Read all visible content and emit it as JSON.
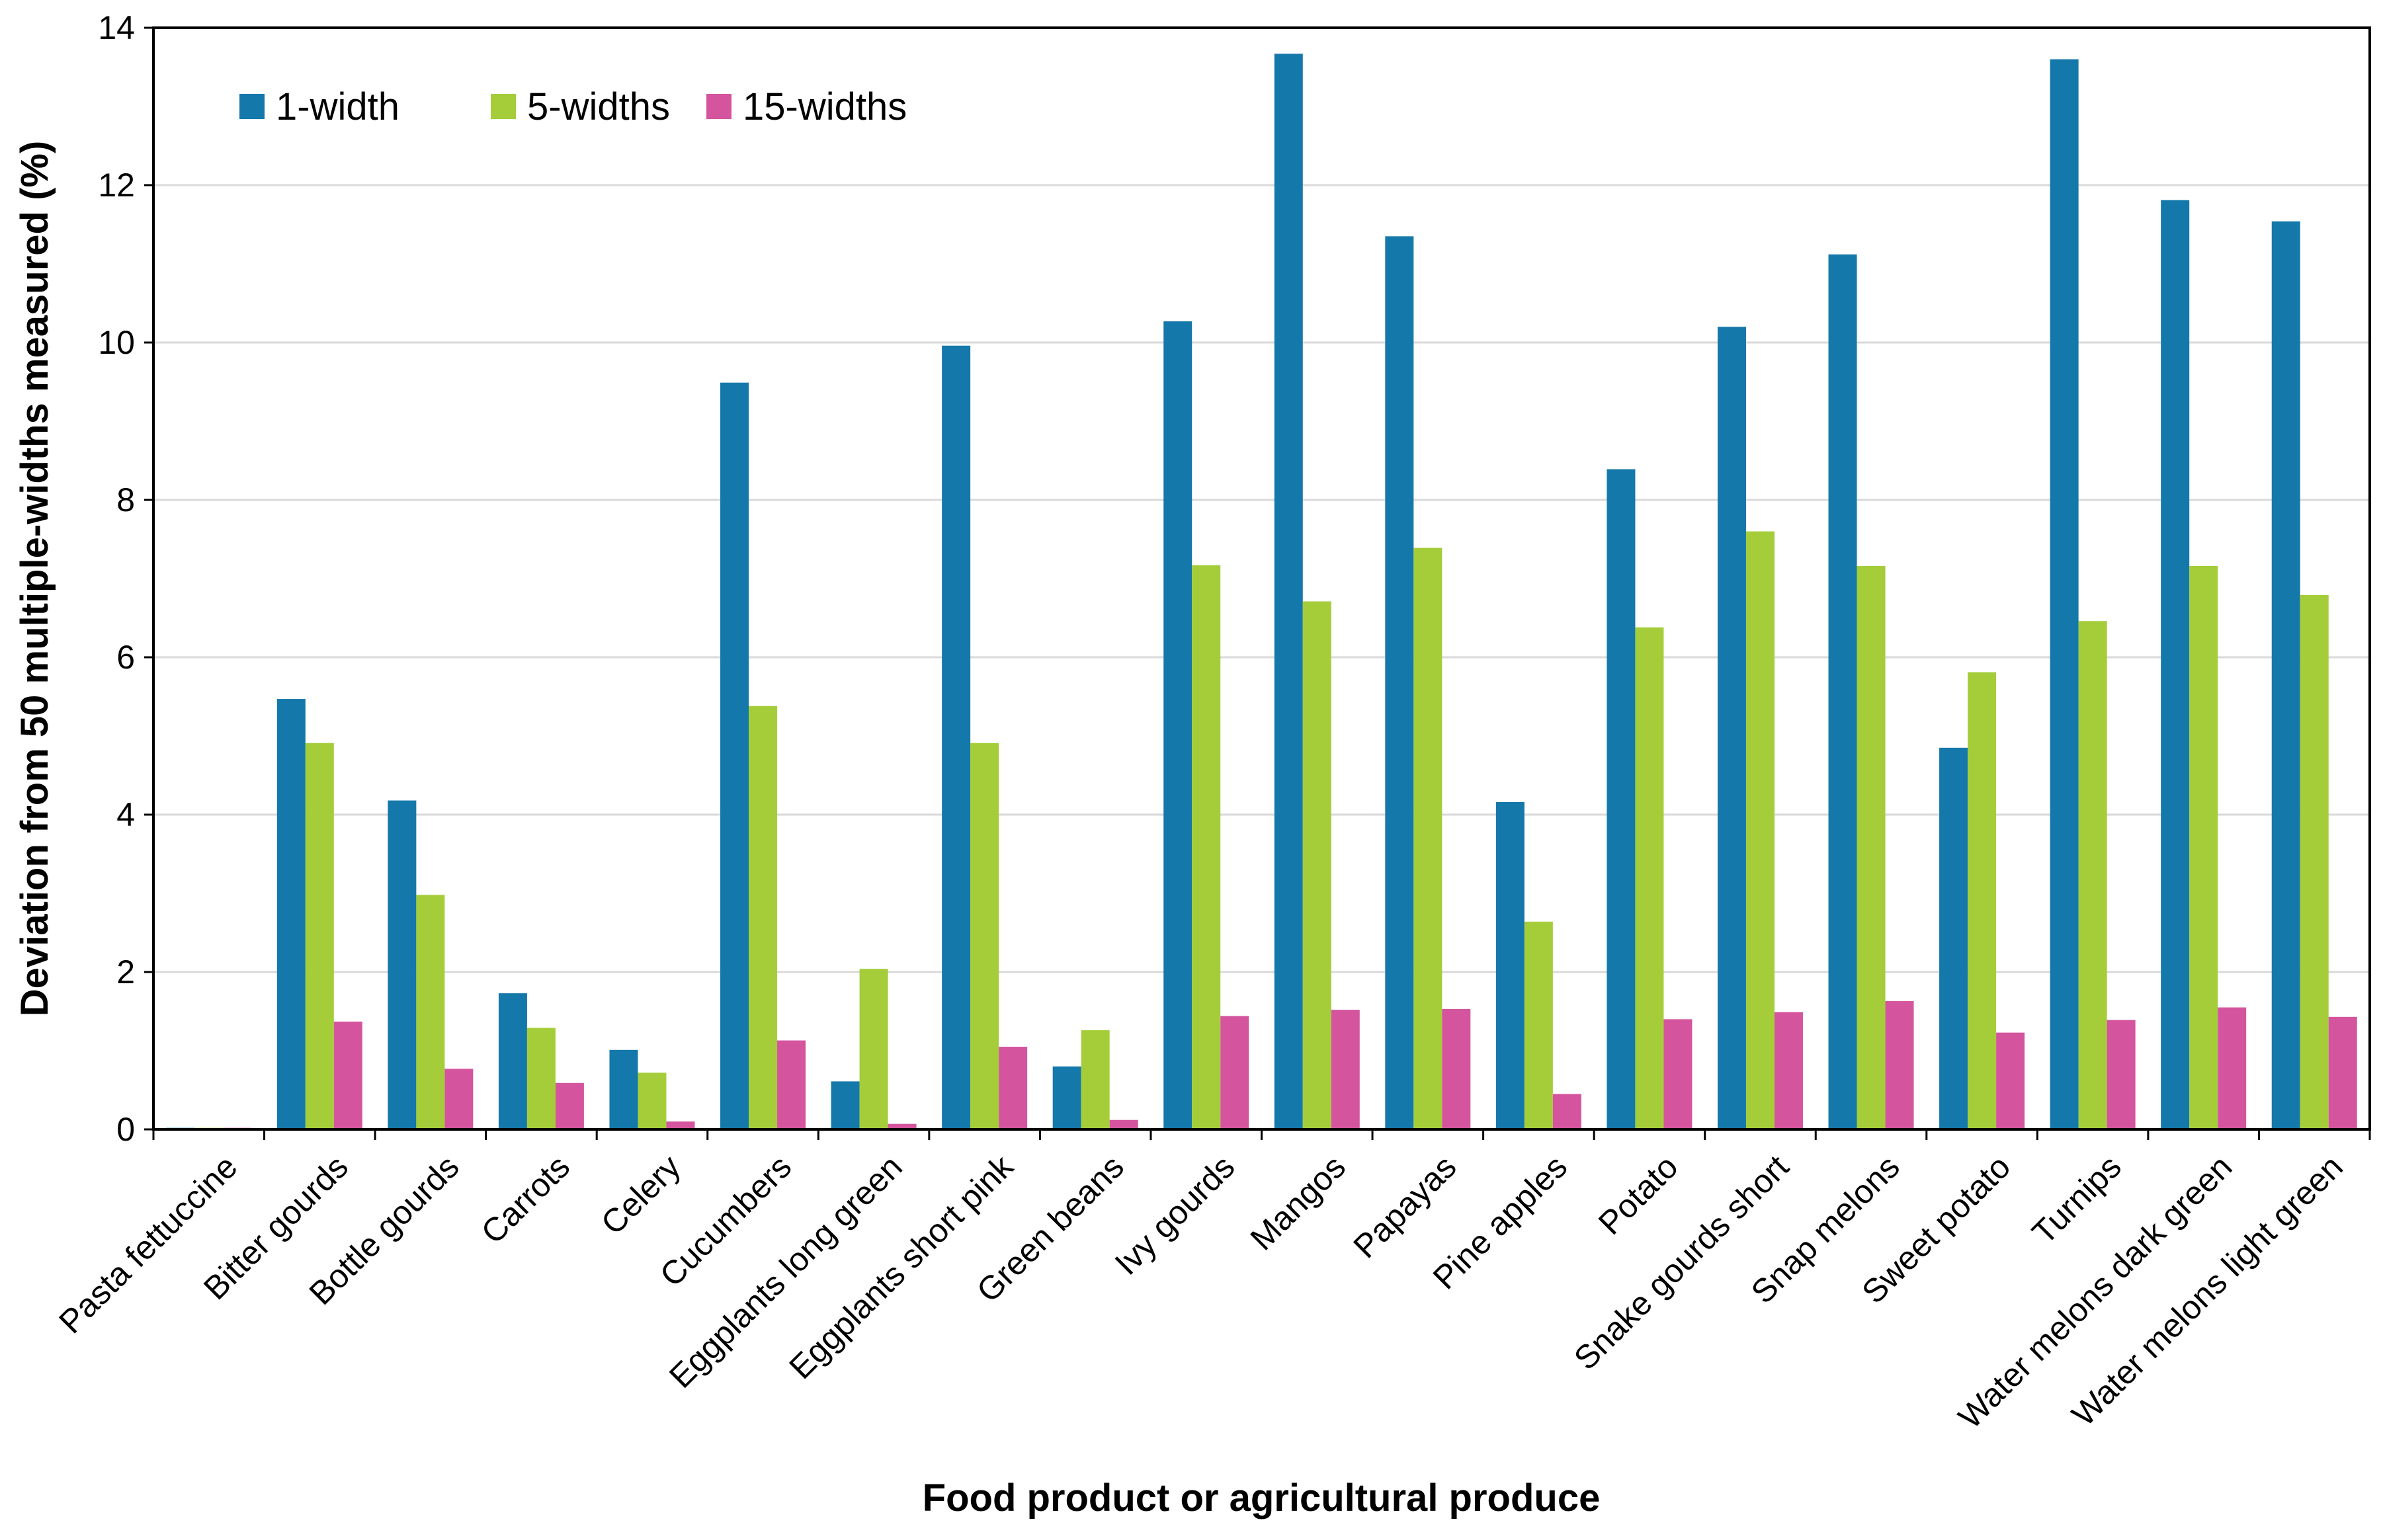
{
  "chart_data": {
    "type": "bar",
    "title": "",
    "xlabel": "Food product or agricultural produce",
    "ylabel": "Deviation from 50 multiple-widths measured (%)",
    "ylim": [
      0,
      14
    ],
    "yticks": [
      0,
      2,
      4,
      6,
      8,
      10,
      12,
      14
    ],
    "grid": true,
    "legend_position": "top-left",
    "categories": [
      "Pasta fettuccine",
      "Bitter gourds",
      "Bottle gourds",
      "Carrots",
      "Celery",
      "Cucumbers",
      "Eggplants long green",
      "Eggplants short pink",
      "Green beans",
      "Ivy gourds",
      "Mangos",
      "Papayas",
      "Pine apples",
      "Potato",
      "Snake gourds short",
      "Snap melons",
      "Sweet potato",
      "Turnips",
      "Water melons dark green",
      "Water melons light green"
    ],
    "series": [
      {
        "name": "1-width",
        "color": "#1578aa",
        "values": [
          0.02,
          5.47,
          4.18,
          1.73,
          1.01,
          9.49,
          0.61,
          9.96,
          0.8,
          10.27,
          13.67,
          11.35,
          4.16,
          8.39,
          10.2,
          11.12,
          4.85,
          13.6,
          11.81,
          11.54
        ]
      },
      {
        "name": "5-widths",
        "color": "#a5cd39",
        "values": [
          0.02,
          4.91,
          2.98,
          1.29,
          0.72,
          5.38,
          2.04,
          4.91,
          1.26,
          7.17,
          6.71,
          7.39,
          2.64,
          6.38,
          7.6,
          7.16,
          5.81,
          6.46,
          7.16,
          6.79
        ]
      },
      {
        "name": "15-widths",
        "color": "#d4559e",
        "values": [
          0.02,
          1.37,
          0.77,
          0.59,
          0.1,
          1.13,
          0.07,
          1.05,
          0.12,
          1.44,
          1.52,
          1.53,
          0.45,
          1.4,
          1.49,
          1.63,
          1.23,
          1.39,
          1.55,
          1.43
        ]
      }
    ]
  }
}
